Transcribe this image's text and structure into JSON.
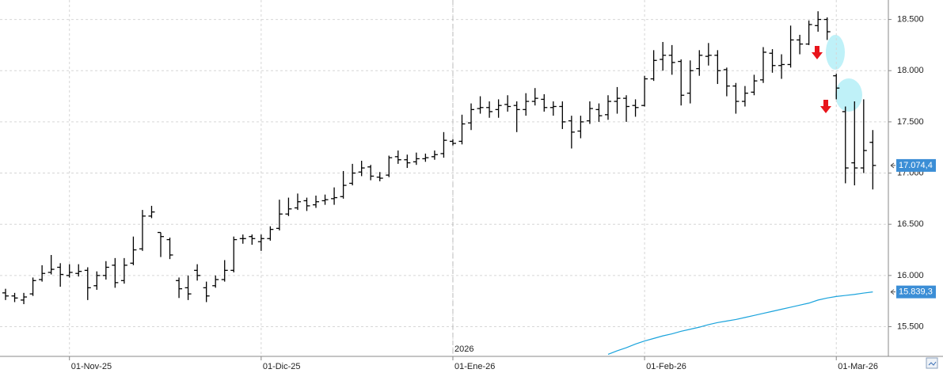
{
  "chart_data": {
    "type": "ohlc",
    "categories": [
      null,
      null,
      null,
      null,
      null,
      null,
      null,
      "01-Nov-25",
      null,
      null,
      null,
      null,
      null,
      null,
      null,
      null,
      null,
      null,
      null,
      null,
      null,
      null,
      null,
      null,
      null,
      null,
      null,
      null,
      "01-Dic-25",
      null,
      null,
      null,
      null,
      null,
      null,
      null,
      null,
      null,
      null,
      null,
      null,
      null,
      null,
      null,
      null,
      null,
      null,
      null,
      null,
      "01-Ene-26",
      null,
      null,
      null,
      null,
      null,
      null,
      null,
      null,
      null,
      null,
      null,
      null,
      null,
      null,
      null,
      null,
      null,
      null,
      null,
      null,
      "01-Feb-26",
      null,
      null,
      null,
      null,
      null,
      null,
      null,
      null,
      null,
      null,
      null,
      null,
      null,
      null,
      null,
      null,
      null,
      null,
      null,
      null,
      "01-Mar-26",
      null,
      null,
      null,
      null
    ],
    "year_marker": {
      "category": 49,
      "label": "2026"
    },
    "ylim": [
      15210,
      18690
    ],
    "yticks": [
      {
        "value": 15500,
        "label": "15.500"
      },
      {
        "value": 16000,
        "label": "16.000"
      },
      {
        "value": 16500,
        "label": "16.500"
      },
      {
        "value": 17000,
        "label": "17.000"
      },
      {
        "value": 17500,
        "label": "17.500"
      },
      {
        "value": 18000,
        "label": "18.000"
      },
      {
        "value": 18500,
        "label": "18.500"
      }
    ],
    "grid": true,
    "series": [
      {
        "type": "ohlc",
        "color": "#000000",
        "open": [
          15830,
          15800,
          15760,
          15820,
          15960,
          16030,
          16080,
          16000,
          16020,
          16050,
          15900,
          16000,
          16100,
          15950,
          16120,
          16260,
          16580,
          16420,
          16350,
          15950,
          15880,
          16050,
          15880,
          15900,
          15960,
          16050,
          16360,
          16380,
          16330,
          16360,
          16460,
          16600,
          16660,
          16730,
          16690,
          16730,
          16750,
          16770,
          16900,
          17010,
          17060,
          16960,
          16980,
          17160,
          17130,
          17110,
          17140,
          17160,
          17190,
          17310,
          17310,
          17490,
          17630,
          17640,
          17620,
          17670,
          17660,
          17620,
          17700,
          17720,
          17640,
          17650,
          17510,
          17410,
          17510,
          17620,
          17570,
          17700,
          17730,
          17660,
          17660,
          17920,
          18110,
          18150,
          18090,
          17780,
          18020,
          18140,
          18150,
          18010,
          17850,
          17700,
          17790,
          17910,
          18170,
          18050,
          18060,
          18300,
          18260,
          18440,
          18500,
          17950,
          17600,
          17100,
          17050,
          17300
        ],
        "high": [
          15870,
          15830,
          15830,
          15980,
          16100,
          16200,
          16120,
          16110,
          16110,
          16080,
          16040,
          16140,
          16170,
          16170,
          16380,
          16640,
          16680,
          16420,
          16370,
          15980,
          16000,
          16110,
          15940,
          16000,
          16150,
          16380,
          16400,
          16400,
          16400,
          16480,
          16740,
          16760,
          16800,
          16760,
          16780,
          16790,
          16860,
          17020,
          17090,
          17120,
          17080,
          17010,
          17170,
          17220,
          17180,
          17200,
          17190,
          17220,
          17400,
          17330,
          17570,
          17680,
          17750,
          17700,
          17720,
          17760,
          17700,
          17780,
          17830,
          17770,
          17700,
          17700,
          17560,
          17560,
          17700,
          17680,
          17760,
          17840,
          17760,
          17720,
          17950,
          18200,
          18280,
          18250,
          18110,
          18100,
          18200,
          18270,
          18200,
          18030,
          17880,
          17850,
          17960,
          18230,
          18210,
          18160,
          18440,
          18350,
          18490,
          18580,
          18520,
          17970,
          17650,
          17700,
          17720,
          17420
        ],
        "low": [
          15760,
          15740,
          15720,
          15800,
          15940,
          16010,
          15890,
          15980,
          15990,
          15760,
          15860,
          15960,
          15880,
          15920,
          16100,
          16240,
          16560,
          16180,
          16160,
          15780,
          15760,
          15950,
          15740,
          15880,
          15940,
          16030,
          16310,
          16300,
          16240,
          16340,
          16440,
          16580,
          16640,
          16630,
          16660,
          16690,
          16690,
          16750,
          16880,
          16970,
          16930,
          16920,
          16960,
          17090,
          17050,
          17080,
          17110,
          17130,
          17150,
          17270,
          17280,
          17420,
          17580,
          17540,
          17540,
          17600,
          17400,
          17560,
          17660,
          17600,
          17560,
          17430,
          17240,
          17340,
          17480,
          17500,
          17520,
          17580,
          17500,
          17550,
          17650,
          17900,
          18000,
          17960,
          17660,
          17680,
          17950,
          18050,
          17870,
          17750,
          17580,
          17650,
          17760,
          17880,
          17980,
          17920,
          18030,
          18160,
          18250,
          18380,
          18300,
          17720,
          16900,
          16880,
          17000,
          16840
        ],
        "close": [
          15800,
          15780,
          15790,
          15950,
          16020,
          16060,
          16010,
          16030,
          16040,
          15880,
          16000,
          16080,
          15930,
          16100,
          16250,
          16580,
          16620,
          16380,
          16200,
          15870,
          15820,
          16000,
          15800,
          15960,
          16050,
          16350,
          16360,
          16360,
          16360,
          16450,
          16600,
          16650,
          16720,
          16680,
          16720,
          16740,
          16760,
          16880,
          17000,
          17050,
          16970,
          16950,
          17150,
          17130,
          17100,
          17140,
          17150,
          17180,
          17320,
          17290,
          17480,
          17620,
          17640,
          17600,
          17660,
          17650,
          17620,
          17700,
          17730,
          17640,
          17650,
          17500,
          17400,
          17500,
          17630,
          17560,
          17700,
          17730,
          17650,
          17640,
          17920,
          18100,
          18150,
          18080,
          17760,
          18000,
          18150,
          18150,
          18000,
          17850,
          17700,
          17780,
          17900,
          18180,
          18050,
          18060,
          18300,
          18260,
          18450,
          18500,
          18380,
          17830,
          17050,
          17050,
          17220,
          17074.4
        ],
        "value_labels": [
          null,
          null,
          null,
          null,
          null,
          null,
          null,
          null,
          null,
          null,
          null,
          null,
          null,
          null,
          null,
          null,
          null,
          null,
          null,
          null,
          null,
          null,
          null,
          null,
          null,
          null,
          null,
          null,
          null,
          null,
          null,
          null,
          null,
          null,
          null,
          null,
          null,
          null,
          null,
          null,
          null,
          null,
          null,
          null,
          null,
          null,
          null,
          null,
          null,
          null,
          null,
          null,
          null,
          null,
          null,
          null,
          null,
          null,
          null,
          null,
          null,
          null,
          null,
          null,
          null,
          null,
          null,
          null,
          null,
          null,
          null,
          null,
          null,
          null,
          null,
          null,
          null,
          null,
          null,
          null,
          null,
          null,
          null,
          null,
          null,
          null,
          null,
          null,
          null,
          null,
          null,
          null,
          null,
          null,
          null,
          "17.074,4"
        ]
      },
      {
        "type": "line",
        "color": "#1aa3dc",
        "values": [
          null,
          null,
          null,
          null,
          null,
          null,
          null,
          null,
          null,
          null,
          null,
          null,
          null,
          null,
          null,
          null,
          null,
          null,
          null,
          null,
          null,
          null,
          null,
          null,
          null,
          null,
          null,
          null,
          null,
          null,
          null,
          null,
          null,
          null,
          null,
          null,
          null,
          null,
          null,
          null,
          null,
          null,
          null,
          null,
          null,
          null,
          null,
          null,
          null,
          null,
          null,
          null,
          null,
          null,
          null,
          null,
          null,
          null,
          null,
          null,
          null,
          null,
          null,
          null,
          null,
          null,
          15230,
          15265,
          15295,
          15330,
          15360,
          15385,
          15410,
          15430,
          15455,
          15475,
          15495,
          15520,
          15540,
          15555,
          15570,
          15590,
          15610,
          15630,
          15650,
          15670,
          15690,
          15710,
          15730,
          15760,
          15780,
          15795,
          15805,
          15815,
          15828,
          15839.3
        ],
        "value_labels": [
          null,
          null,
          null,
          null,
          null,
          null,
          null,
          null,
          null,
          null,
          null,
          null,
          null,
          null,
          null,
          null,
          null,
          null,
          null,
          null,
          null,
          null,
          null,
          null,
          null,
          null,
          null,
          null,
          null,
          null,
          null,
          null,
          null,
          null,
          null,
          null,
          null,
          null,
          null,
          null,
          null,
          null,
          null,
          null,
          null,
          null,
          null,
          null,
          null,
          null,
          null,
          null,
          null,
          null,
          null,
          null,
          null,
          null,
          null,
          null,
          null,
          null,
          null,
          null,
          null,
          null,
          null,
          null,
          null,
          null,
          null,
          null,
          null,
          null,
          null,
          null,
          null,
          null,
          null,
          null,
          null,
          null,
          null,
          null,
          null,
          null,
          null,
          null,
          null,
          null,
          null,
          null,
          null,
          null,
          null,
          "15.839,3"
        ]
      }
    ]
  }
}
